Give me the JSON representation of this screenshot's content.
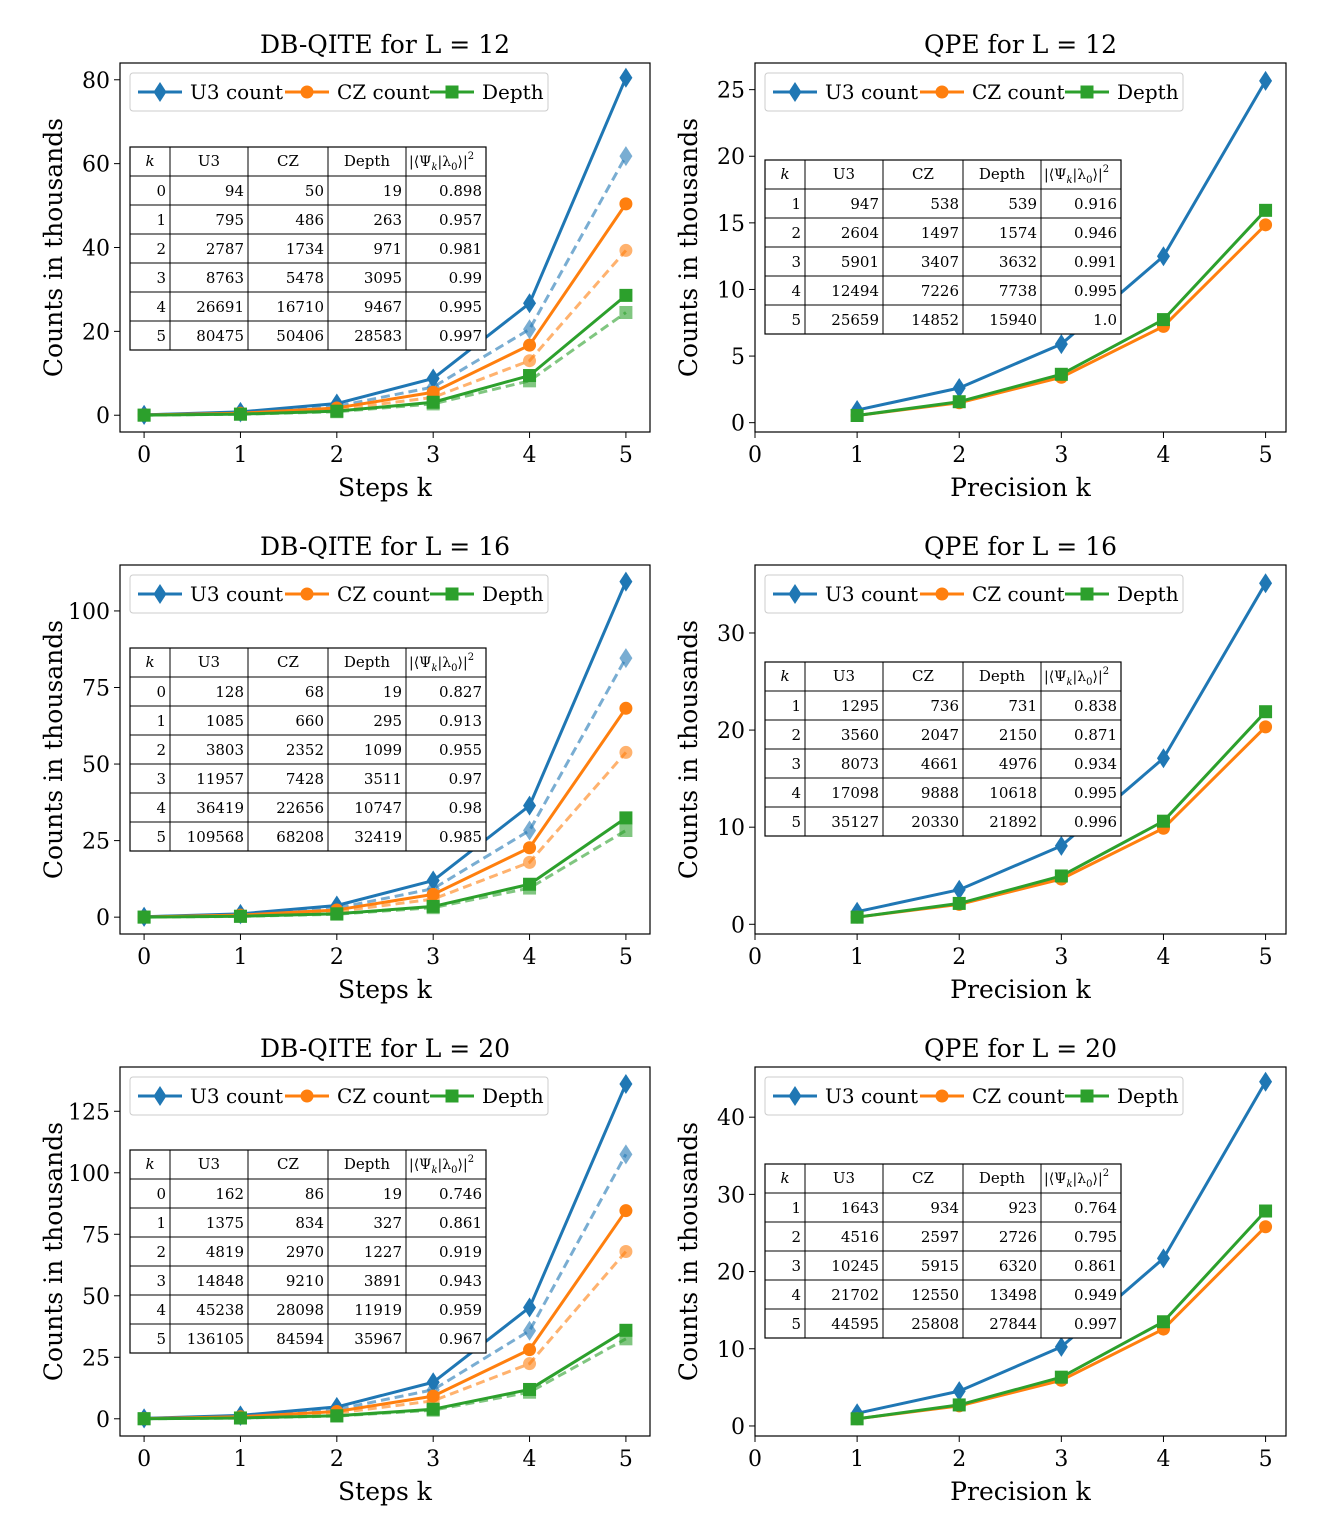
{
  "colors": {
    "u3": "#1f77b4",
    "cz": "#ff7f0e",
    "depth": "#2ca02c"
  },
  "legend_labels": [
    "U3 count",
    "CZ count",
    "Depth"
  ],
  "table_headers": [
    "k",
    "U3",
    "CZ",
    "Depth",
    "|⟨Ψ",
    "k",
    "|λ",
    "0",
    "⟩|",
    "2"
  ],
  "chart_data": [
    {
      "type": "line",
      "title": "DB-QITE for L = 12",
      "xlabel": "Steps k",
      "ylabel": "Counts in thousands",
      "x": [
        0,
        1,
        2,
        3,
        4,
        5
      ],
      "xlim": [
        -0.25,
        5.25
      ],
      "ylim": [
        -4,
        84
      ],
      "xticks": [
        0,
        1,
        2,
        3,
        4,
        5
      ],
      "yticks": [
        0,
        20,
        40,
        60,
        80
      ],
      "legend_position": "top-left",
      "series": [
        {
          "name": "U3 count",
          "style": "solid",
          "marker": "diamond",
          "values": [
            0.094,
            0.795,
            2.787,
            8.763,
            26.691,
            80.475
          ]
        },
        {
          "name": "CZ count",
          "style": "solid",
          "marker": "circle",
          "values": [
            0.05,
            0.486,
            1.734,
            5.478,
            16.71,
            50.406
          ]
        },
        {
          "name": "Depth",
          "style": "solid",
          "marker": "square",
          "values": [
            0.019,
            0.263,
            0.971,
            3.095,
            9.467,
            28.583
          ]
        },
        {
          "name": "U3 count",
          "style": "dashed",
          "marker": "diamond",
          "values": [
            0.084,
            0.61,
            2.14,
            6.72,
            20.5,
            61.8
          ]
        },
        {
          "name": "CZ count",
          "style": "dashed",
          "marker": "circle",
          "values": [
            0.045,
            0.38,
            1.35,
            4.25,
            13.0,
            39.3
          ]
        },
        {
          "name": "Depth",
          "style": "dashed",
          "marker": "square",
          "values": [
            0.017,
            0.23,
            0.84,
            2.7,
            8.2,
            24.5
          ]
        }
      ],
      "table": {
        "rows": [
          [
            "0",
            "94",
            "50",
            "19",
            "0.898"
          ],
          [
            "1",
            "795",
            "486",
            "263",
            "0.957"
          ],
          [
            "2",
            "2787",
            "1734",
            "971",
            "0.981"
          ],
          [
            "3",
            "8763",
            "5478",
            "3095",
            "0.99"
          ],
          [
            "4",
            "26691",
            "16710",
            "9467",
            "0.995"
          ],
          [
            "5",
            "80475",
            "50406",
            "28583",
            "0.997"
          ]
        ]
      }
    },
    {
      "type": "line",
      "title": "QPE for L = 12",
      "xlabel": "Precision k",
      "ylabel": "Counts in thousands",
      "x": [
        1,
        2,
        3,
        4,
        5
      ],
      "xlim": [
        0,
        5.2
      ],
      "ylim": [
        -0.7,
        27
      ],
      "xticks": [
        0,
        1,
        2,
        3,
        4,
        5
      ],
      "yticks": [
        0,
        5,
        10,
        15,
        20,
        25
      ],
      "legend_position": "top-left",
      "series": [
        {
          "name": "U3 count",
          "style": "solid",
          "marker": "diamond",
          "values": [
            0.947,
            2.604,
            5.901,
            12.494,
            25.659
          ]
        },
        {
          "name": "CZ count",
          "style": "solid",
          "marker": "circle",
          "values": [
            0.538,
            1.497,
            3.407,
            7.226,
            14.852
          ]
        },
        {
          "name": "Depth",
          "style": "solid",
          "marker": "square",
          "values": [
            0.539,
            1.574,
            3.632,
            7.738,
            15.94
          ]
        }
      ],
      "table": {
        "rows": [
          [
            "1",
            "947",
            "538",
            "539",
            "0.916"
          ],
          [
            "2",
            "2604",
            "1497",
            "1574",
            "0.946"
          ],
          [
            "3",
            "5901",
            "3407",
            "3632",
            "0.991"
          ],
          [
            "4",
            "12494",
            "7226",
            "7738",
            "0.995"
          ],
          [
            "5",
            "25659",
            "14852",
            "15940",
            "1.0"
          ]
        ]
      }
    },
    {
      "type": "line",
      "title": "DB-QITE for L = 16",
      "xlabel": "Steps k",
      "ylabel": "Counts in thousands",
      "x": [
        0,
        1,
        2,
        3,
        4,
        5
      ],
      "xlim": [
        -0.25,
        5.25
      ],
      "ylim": [
        -5.5,
        115
      ],
      "xticks": [
        0,
        1,
        2,
        3,
        4,
        5
      ],
      "yticks": [
        0,
        25,
        50,
        75,
        100
      ],
      "legend_position": "top-left",
      "series": [
        {
          "name": "U3 count",
          "style": "solid",
          "marker": "diamond",
          "values": [
            0.128,
            1.085,
            3.803,
            11.957,
            36.419,
            109.568
          ]
        },
        {
          "name": "CZ count",
          "style": "solid",
          "marker": "circle",
          "values": [
            0.068,
            0.66,
            2.352,
            7.428,
            22.656,
            68.208
          ]
        },
        {
          "name": "Depth",
          "style": "solid",
          "marker": "square",
          "values": [
            0.019,
            0.295,
            1.099,
            3.511,
            10.747,
            32.419
          ]
        },
        {
          "name": "U3 count",
          "style": "dashed",
          "marker": "diamond",
          "values": [
            0.11,
            0.85,
            2.95,
            9.3,
            28.3,
            84.6
          ]
        },
        {
          "name": "CZ count",
          "style": "dashed",
          "marker": "circle",
          "values": [
            0.06,
            0.52,
            1.85,
            5.9,
            17.9,
            53.8
          ]
        },
        {
          "name": "Depth",
          "style": "dashed",
          "marker": "square",
          "values": [
            0.018,
            0.26,
            0.96,
            3.1,
            9.5,
            28.3
          ]
        }
      ],
      "table": {
        "rows": [
          [
            "0",
            "128",
            "68",
            "19",
            "0.827"
          ],
          [
            "1",
            "1085",
            "660",
            "295",
            "0.913"
          ],
          [
            "2",
            "3803",
            "2352",
            "1099",
            "0.955"
          ],
          [
            "3",
            "11957",
            "7428",
            "3511",
            "0.97"
          ],
          [
            "4",
            "36419",
            "22656",
            "10747",
            "0.98"
          ],
          [
            "5",
            "109568",
            "68208",
            "32419",
            "0.985"
          ]
        ]
      }
    },
    {
      "type": "line",
      "title": "QPE for L = 16",
      "xlabel": "Precision k",
      "ylabel": "Counts in thousands",
      "x": [
        1,
        2,
        3,
        4,
        5
      ],
      "xlim": [
        0,
        5.2
      ],
      "ylim": [
        -1,
        37
      ],
      "xticks": [
        0,
        1,
        2,
        3,
        4,
        5
      ],
      "yticks": [
        0,
        10,
        20,
        30
      ],
      "legend_position": "top-left",
      "series": [
        {
          "name": "U3 count",
          "style": "solid",
          "marker": "diamond",
          "values": [
            1.295,
            3.56,
            8.073,
            17.098,
            35.127
          ]
        },
        {
          "name": "CZ count",
          "style": "solid",
          "marker": "circle",
          "values": [
            0.736,
            2.047,
            4.661,
            9.888,
            20.33
          ]
        },
        {
          "name": "Depth",
          "style": "solid",
          "marker": "square",
          "values": [
            0.731,
            2.15,
            4.976,
            10.618,
            21.892
          ]
        }
      ],
      "table": {
        "rows": [
          [
            "1",
            "1295",
            "736",
            "731",
            "0.838"
          ],
          [
            "2",
            "3560",
            "2047",
            "2150",
            "0.871"
          ],
          [
            "3",
            "8073",
            "4661",
            "4976",
            "0.934"
          ],
          [
            "4",
            "17098",
            "9888",
            "10618",
            "0.995"
          ],
          [
            "5",
            "35127",
            "20330",
            "21892",
            "0.996"
          ]
        ]
      }
    },
    {
      "type": "line",
      "title": "DB-QITE for L = 20",
      "xlabel": "Steps k",
      "ylabel": "Counts in thousands",
      "x": [
        0,
        1,
        2,
        3,
        4,
        5
      ],
      "xlim": [
        -0.25,
        5.25
      ],
      "ylim": [
        -7,
        143
      ],
      "xticks": [
        0,
        1,
        2,
        3,
        4,
        5
      ],
      "yticks": [
        0,
        25,
        50,
        75,
        100,
        125
      ],
      "legend_position": "top-left",
      "series": [
        {
          "name": "U3 count",
          "style": "solid",
          "marker": "diamond",
          "values": [
            0.162,
            1.375,
            4.819,
            14.848,
            45.238,
            136.105
          ]
        },
        {
          "name": "CZ count",
          "style": "solid",
          "marker": "circle",
          "values": [
            0.086,
            0.834,
            2.97,
            9.21,
            28.098,
            84.594
          ]
        },
        {
          "name": "Depth",
          "style": "solid",
          "marker": "square",
          "values": [
            0.019,
            0.327,
            1.227,
            3.891,
            11.919,
            35.967
          ]
        },
        {
          "name": "U3 count",
          "style": "dashed",
          "marker": "diamond",
          "values": [
            0.14,
            1.1,
            3.8,
            11.8,
            35.8,
            107.5
          ]
        },
        {
          "name": "CZ count",
          "style": "dashed",
          "marker": "circle",
          "values": [
            0.075,
            0.67,
            2.35,
            7.3,
            22.4,
            68.0
          ]
        },
        {
          "name": "Depth",
          "style": "dashed",
          "marker": "square",
          "values": [
            0.018,
            0.3,
            1.1,
            3.5,
            10.8,
            32.5
          ]
        }
      ],
      "table": {
        "rows": [
          [
            "0",
            "162",
            "86",
            "19",
            "0.746"
          ],
          [
            "1",
            "1375",
            "834",
            "327",
            "0.861"
          ],
          [
            "2",
            "4819",
            "2970",
            "1227",
            "0.919"
          ],
          [
            "3",
            "14848",
            "9210",
            "3891",
            "0.943"
          ],
          [
            "4",
            "45238",
            "28098",
            "11919",
            "0.959"
          ],
          [
            "5",
            "136105",
            "84594",
            "35967",
            "0.967"
          ]
        ]
      }
    },
    {
      "type": "line",
      "title": "QPE for L = 20",
      "xlabel": "Precision k",
      "ylabel": "Counts in thousands",
      "x": [
        1,
        2,
        3,
        4,
        5
      ],
      "xlim": [
        0,
        5.2
      ],
      "ylim": [
        -1.3,
        46.5
      ],
      "xticks": [
        0,
        1,
        2,
        3,
        4,
        5
      ],
      "yticks": [
        0,
        10,
        20,
        30,
        40
      ],
      "legend_position": "top-left",
      "series": [
        {
          "name": "U3 count",
          "style": "solid",
          "marker": "diamond",
          "values": [
            1.643,
            4.516,
            10.245,
            21.702,
            44.595
          ]
        },
        {
          "name": "CZ count",
          "style": "solid",
          "marker": "circle",
          "values": [
            0.934,
            2.597,
            5.915,
            12.55,
            25.808
          ]
        },
        {
          "name": "Depth",
          "style": "solid",
          "marker": "square",
          "values": [
            0.923,
            2.726,
            6.32,
            13.498,
            27.844
          ]
        }
      ],
      "table": {
        "rows": [
          [
            "1",
            "1643",
            "934",
            "923",
            "0.764"
          ],
          [
            "2",
            "4516",
            "2597",
            "2726",
            "0.795"
          ],
          [
            "3",
            "10245",
            "5915",
            "6320",
            "0.861"
          ],
          [
            "4",
            "21702",
            "12550",
            "13498",
            "0.949"
          ],
          [
            "5",
            "44595",
            "25808",
            "27844",
            "0.997"
          ]
        ]
      }
    }
  ]
}
